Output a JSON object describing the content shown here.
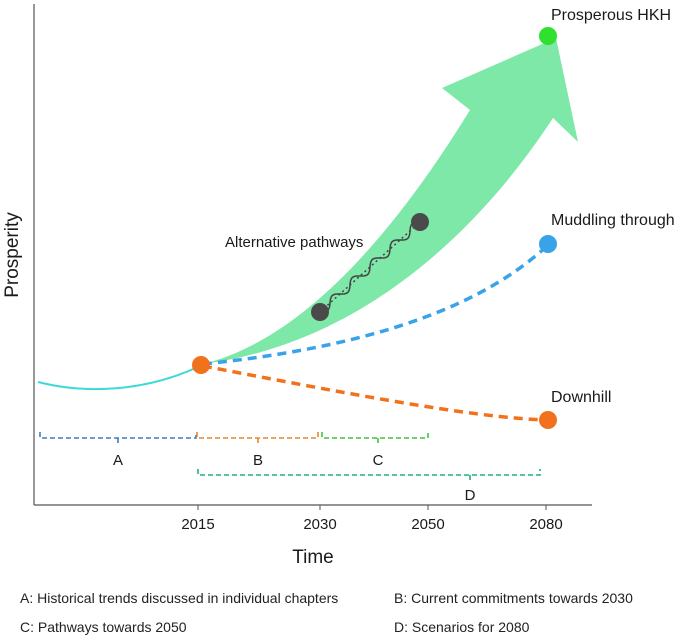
{
  "axes": {
    "y_label": "Prosperity",
    "x_label": "Time",
    "x_ticks": [
      "2015",
      "2030",
      "2050",
      "2080"
    ]
  },
  "scenarios": {
    "prosperous": {
      "label": "Prosperous HKH",
      "color": "#2fe02f"
    },
    "muddling": {
      "label": "Muddling through",
      "color": "#3aa3e8"
    },
    "downhill": {
      "label": "Downhill",
      "color": "#f2711c"
    }
  },
  "annotations": {
    "alternative_pathways": "Alternative pathways"
  },
  "colors": {
    "historical_line": "#3fd8d8",
    "pathway_band": "#7de8a8",
    "start_point": "#f2711c",
    "pathway_node": "#4a4a4a"
  },
  "brackets": {
    "A": {
      "letter": "A",
      "color": "#3c7fc4"
    },
    "B": {
      "letter": "B",
      "color": "#e8872c"
    },
    "C": {
      "letter": "C",
      "color": "#3ec63e"
    },
    "D": {
      "letter": "D",
      "color": "#22b07a"
    }
  },
  "legend": {
    "a": "A: Historical trends discussed in individual chapters",
    "b": "B: Current commitments towards 2030",
    "c": "C: Pathways towards 2050",
    "d": "D: Scenarios for 2080"
  }
}
